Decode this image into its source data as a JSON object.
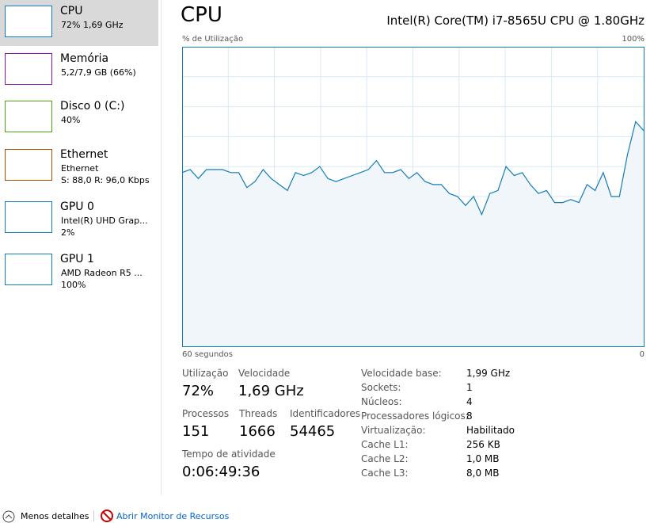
{
  "sidebar": {
    "items": [
      {
        "title": "CPU",
        "line1": "72% 1,69 GHz"
      },
      {
        "title": "Memória",
        "line1": "5,2/7,9 GB (66%)"
      },
      {
        "title": "Disco 0 (C:)",
        "line1": "40%"
      },
      {
        "title": "Ethernet",
        "line1": "Ethernet",
        "line2": "S: 88,0 R: 96,0 Kbps"
      },
      {
        "title": "GPU 0",
        "line1": "Intel(R) UHD Grap...",
        "line2": "2%"
      },
      {
        "title": "GPU 1",
        "line1": "AMD Radeon R5 ...",
        "line2": "100%"
      }
    ]
  },
  "main": {
    "title": "CPU",
    "cpu_name": "Intel(R) Core(TM) i7-8565U CPU @ 1.80GHz",
    "graph": {
      "y_label": "% de Utilização",
      "y_max_label": "100%",
      "x_left_label": "60 segundos",
      "x_right_label": "0",
      "ylim": [
        0,
        100
      ],
      "values": [
        58,
        59,
        56,
        59,
        59,
        59,
        58,
        58,
        53,
        55,
        59,
        56,
        54,
        52,
        58,
        57,
        58,
        60,
        56,
        55,
        56,
        57,
        58,
        59,
        62,
        58,
        58,
        59,
        56,
        58,
        55,
        54,
        54,
        51,
        50,
        47,
        50,
        44,
        51,
        52,
        60,
        57,
        58,
        54,
        51,
        52,
        48,
        48,
        49,
        48,
        54,
        52,
        58,
        50,
        50,
        64,
        75,
        72
      ]
    },
    "stats": [
      {
        "label": "Utilização",
        "value": "72%"
      },
      {
        "label": "Velocidade",
        "value": "1,69 GHz"
      },
      {
        "label": "Processos",
        "value": "151"
      },
      {
        "label": "Threads",
        "value": "1666"
      },
      {
        "label": "Identificadores",
        "value": "54465"
      },
      {
        "label": "Tempo de atividade",
        "value": "0:06:49:36"
      }
    ],
    "details": [
      [
        "Velocidade base:",
        "1,99 GHz"
      ],
      [
        "Sockets:",
        "1"
      ],
      [
        "Núcleos:",
        "4"
      ],
      [
        "Processadores lógicos:",
        "8"
      ],
      [
        "Virtualização:",
        "Habilitado"
      ],
      [
        "Cache L1:",
        "256 KB"
      ],
      [
        "Cache L2:",
        "1,0 MB"
      ],
      [
        "Cache L3:",
        "8,0 MB"
      ]
    ]
  },
  "footer": {
    "less": "Menos detalhes",
    "monitor": "Abrir Monitor de Recursos"
  }
}
